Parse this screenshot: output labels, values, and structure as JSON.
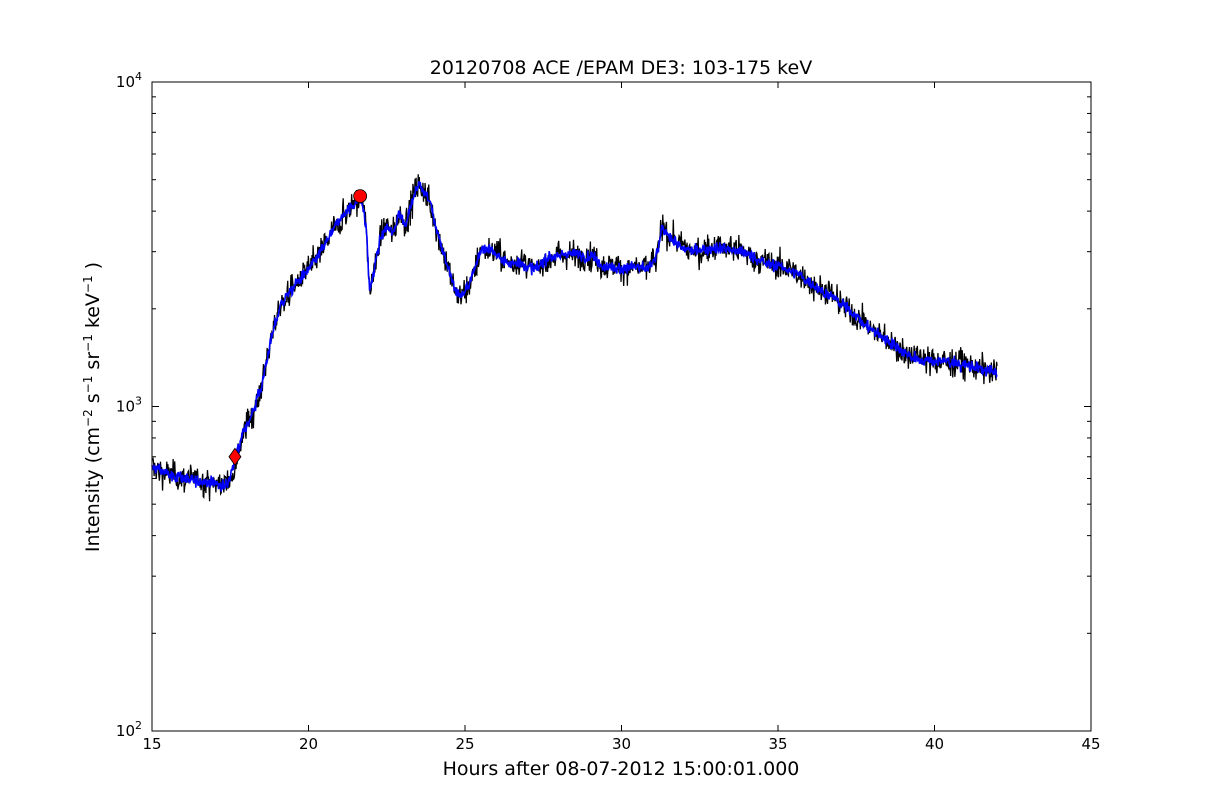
{
  "chart_data": {
    "type": "line",
    "title": "20120708 ACE /EPAM DE3: 103-175 keV",
    "xlabel": "Hours after 08-07-2012 15:00:01.000",
    "ylabel": "Intensity (cm",
    "ylabel_parts": [
      "Intensity (cm",
      "−2",
      " s",
      "−1",
      " sr",
      "−1",
      " keV",
      "−1",
      " )"
    ],
    "xlim": [
      15,
      45
    ],
    "ylim": [
      100,
      10000
    ],
    "yscale": "log",
    "grid": false,
    "x_ticks": [
      "15",
      "20",
      "25",
      "30",
      "35",
      "40",
      "45"
    ],
    "y_ticks": [
      {
        "base": "10",
        "exp": "2",
        "value": 100
      },
      {
        "base": "10",
        "exp": "3",
        "value": 1000
      },
      {
        "base": "10",
        "exp": "4",
        "value": 10000
      }
    ],
    "colors": {
      "raw": "#000000",
      "smoothed": "#0000ff",
      "marker": "#ff0000"
    },
    "series": [
      {
        "x": [
          15.0,
          15.5,
          16.0,
          16.5,
          17.0,
          17.3,
          17.5,
          17.7,
          17.9,
          18.2,
          18.5,
          18.7,
          18.9,
          19.1,
          19.4,
          19.7,
          20.0,
          20.3,
          20.6,
          20.9,
          21.2,
          21.5,
          21.7,
          21.85,
          21.95,
          22.1,
          22.3,
          22.5,
          22.7,
          22.9,
          23.1,
          23.3,
          23.5,
          23.7,
          23.9,
          24.1,
          24.3,
          24.5,
          24.7,
          24.9,
          25.1,
          25.3,
          25.5,
          25.8,
          26.1,
          26.4,
          26.7,
          27.0,
          27.3,
          27.6,
          27.9,
          28.2,
          28.5,
          28.8,
          29.1,
          29.4,
          29.7,
          30.0,
          30.4,
          30.8,
          31.1,
          31.3,
          31.6,
          31.9,
          32.3,
          32.7,
          33.1,
          33.5,
          33.9,
          34.3,
          34.7,
          35.1,
          35.5,
          35.9,
          36.3,
          36.7,
          37.1,
          37.5,
          37.9,
          38.3,
          38.7,
          39.1,
          39.5,
          39.9,
          40.3,
          40.7,
          41.1,
          41.5,
          42.0
        ],
        "y": [
          650,
          620,
          600,
          590,
          580,
          570,
          600,
          700,
          820,
          950,
          1150,
          1450,
          1750,
          2050,
          2250,
          2450,
          2650,
          2900,
          3250,
          3650,
          3950,
          4300,
          4400,
          3500,
          2250,
          2650,
          3300,
          3600,
          3400,
          3950,
          3650,
          4250,
          4850,
          4600,
          4200,
          3500,
          3000,
          2600,
          2250,
          2200,
          2350,
          2600,
          3050,
          3050,
          2900,
          2750,
          2800,
          2700,
          2650,
          2850,
          2900,
          2950,
          2950,
          2900,
          2900,
          2700,
          2700,
          2650,
          2700,
          2650,
          2850,
          3550,
          3300,
          3100,
          3000,
          3050,
          3100,
          3050,
          3000,
          2850,
          2750,
          2700,
          2600,
          2450,
          2300,
          2200,
          2050,
          1900,
          1750,
          1650,
          1550,
          1450,
          1400,
          1380,
          1380,
          1360,
          1340,
          1300,
          1270
        ],
        "name": ""
      }
    ],
    "markers": [
      {
        "shape": "diamond",
        "x": 17.65,
        "y": 700
      },
      {
        "shape": "circle",
        "x": 21.65,
        "y": 4450
      }
    ]
  }
}
